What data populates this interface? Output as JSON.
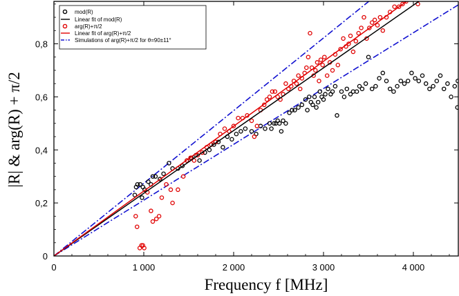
{
  "chart_data": {
    "type": "scatter",
    "xlabel": "Frequency f    [MHz]",
    "ylabel": "|R| & arg(R) + π/2",
    "xlim": [
      0,
      4500
    ],
    "ylim": [
      0,
      0.96
    ],
    "xticks": [
      0,
      1000,
      2000,
      3000,
      4000
    ],
    "xtick_labels": [
      "0",
      "1 000",
      "2 000",
      "3 000",
      "4 000"
    ],
    "yticks": [
      0,
      0.2,
      0.4,
      0.6,
      0.8
    ],
    "ytick_labels": [
      "0",
      "0,2",
      "0,4",
      "0,6",
      "0,8"
    ],
    "legend_position": "top-left",
    "colors": {
      "mod": "#000000",
      "arg": "#e00000",
      "sim": "#1010d0"
    },
    "series": [
      {
        "name": "mod(R)",
        "kind": "points",
        "color": "#000000",
        "points": [
          [
            900,
            0.23
          ],
          [
            915,
            0.26
          ],
          [
            930,
            0.27
          ],
          [
            960,
            0.27
          ],
          [
            980,
            0.22
          ],
          [
            990,
            0.26
          ],
          [
            1010,
            0.25
          ],
          [
            1050,
            0.28
          ],
          [
            1080,
            0.27
          ],
          [
            1100,
            0.3
          ],
          [
            1130,
            0.3
          ],
          [
            1180,
            0.29
          ],
          [
            1220,
            0.31
          ],
          [
            1280,
            0.35
          ],
          [
            1320,
            0.33
          ],
          [
            1380,
            0.33
          ],
          [
            1430,
            0.34
          ],
          [
            1480,
            0.36
          ],
          [
            1530,
            0.37
          ],
          [
            1580,
            0.38
          ],
          [
            1620,
            0.36
          ],
          [
            1680,
            0.39
          ],
          [
            1730,
            0.4
          ],
          [
            1780,
            0.42
          ],
          [
            1830,
            0.43
          ],
          [
            1880,
            0.41
          ],
          [
            1930,
            0.45
          ],
          [
            1980,
            0.44
          ],
          [
            2030,
            0.46
          ],
          [
            2080,
            0.47
          ],
          [
            2130,
            0.48
          ],
          [
            2200,
            0.47
          ],
          [
            2250,
            0.46
          ],
          [
            2300,
            0.49
          ],
          [
            2350,
            0.48
          ],
          [
            2400,
            0.5
          ],
          [
            2420,
            0.48
          ],
          [
            2450,
            0.5
          ],
          [
            2470,
            0.5
          ],
          [
            2490,
            0.51
          ],
          [
            2510,
            0.5
          ],
          [
            2530,
            0.47
          ],
          [
            2550,
            0.51
          ],
          [
            2580,
            0.5
          ],
          [
            2620,
            0.54
          ],
          [
            2650,
            0.55
          ],
          [
            2680,
            0.55
          ],
          [
            2720,
            0.56
          ],
          [
            2760,
            0.57
          ],
          [
            2800,
            0.59
          ],
          [
            2820,
            0.55
          ],
          [
            2840,
            0.6
          ],
          [
            2860,
            0.58
          ],
          [
            2880,
            0.57
          ],
          [
            2900,
            0.6
          ],
          [
            2920,
            0.56
          ],
          [
            2940,
            0.58
          ],
          [
            2960,
            0.62
          ],
          [
            2980,
            0.6
          ],
          [
            3000,
            0.59
          ],
          [
            3020,
            0.61
          ],
          [
            3050,
            0.63
          ],
          [
            3080,
            0.61
          ],
          [
            3100,
            0.62
          ],
          [
            3130,
            0.64
          ],
          [
            3150,
            0.53
          ],
          [
            3200,
            0.62
          ],
          [
            3230,
            0.6
          ],
          [
            3260,
            0.63
          ],
          [
            3300,
            0.61
          ],
          [
            3330,
            0.62
          ],
          [
            3370,
            0.62
          ],
          [
            3400,
            0.64
          ],
          [
            3430,
            0.63
          ],
          [
            3470,
            0.65
          ],
          [
            3500,
            0.75
          ],
          [
            3540,
            0.63
          ],
          [
            3580,
            0.64
          ],
          [
            3620,
            0.67
          ],
          [
            3660,
            0.69
          ],
          [
            3700,
            0.66
          ],
          [
            3740,
            0.63
          ],
          [
            3780,
            0.62
          ],
          [
            3820,
            0.64
          ],
          [
            3860,
            0.66
          ],
          [
            3900,
            0.65
          ],
          [
            3940,
            0.66
          ],
          [
            3980,
            0.69
          ],
          [
            4020,
            0.67
          ],
          [
            4060,
            0.66
          ],
          [
            4100,
            0.68
          ],
          [
            4140,
            0.65
          ],
          [
            4180,
            0.63
          ],
          [
            4220,
            0.64
          ],
          [
            4260,
            0.66
          ],
          [
            4300,
            0.68
          ],
          [
            4340,
            0.63
          ],
          [
            4380,
            0.65
          ],
          [
            4420,
            0.6
          ],
          [
            4460,
            0.64
          ],
          [
            4490,
            0.56
          ],
          [
            4495,
            0.66
          ]
        ]
      },
      {
        "name": "Linear fit of mod(R)",
        "kind": "line",
        "color": "#000000",
        "line": [
          [
            0,
            0
          ],
          [
            4500,
            1.064
          ]
        ]
      },
      {
        "name": "arg(R)+π/2",
        "kind": "points",
        "color": "#e00000",
        "points": [
          [
            910,
            0.15
          ],
          [
            925,
            0.11
          ],
          [
            955,
            0.03
          ],
          [
            975,
            0.04
          ],
          [
            990,
            0.04
          ],
          [
            1005,
            0.03
          ],
          [
            1040,
            0.24
          ],
          [
            1080,
            0.17
          ],
          [
            1100,
            0.13
          ],
          [
            1140,
            0.14
          ],
          [
            1170,
            0.15
          ],
          [
            1200,
            0.22
          ],
          [
            1250,
            0.27
          ],
          [
            1300,
            0.25
          ],
          [
            1320,
            0.2
          ],
          [
            1380,
            0.25
          ],
          [
            1440,
            0.3
          ],
          [
            1480,
            0.36
          ],
          [
            1520,
            0.37
          ],
          [
            1560,
            0.36
          ],
          [
            1600,
            0.38
          ],
          [
            1650,
            0.39
          ],
          [
            1700,
            0.41
          ],
          [
            1750,
            0.42
          ],
          [
            1800,
            0.43
          ],
          [
            1850,
            0.46
          ],
          [
            1900,
            0.48
          ],
          [
            1950,
            0.47
          ],
          [
            2000,
            0.49
          ],
          [
            2050,
            0.52
          ],
          [
            2100,
            0.52
          ],
          [
            2150,
            0.53
          ],
          [
            2200,
            0.51
          ],
          [
            2230,
            0.45
          ],
          [
            2260,
            0.49
          ],
          [
            2300,
            0.55
          ],
          [
            2340,
            0.57
          ],
          [
            2370,
            0.59
          ],
          [
            2400,
            0.6
          ],
          [
            2430,
            0.62
          ],
          [
            2460,
            0.62
          ],
          [
            2490,
            0.6
          ],
          [
            2520,
            0.59
          ],
          [
            2550,
            0.61
          ],
          [
            2580,
            0.65
          ],
          [
            2610,
            0.63
          ],
          [
            2640,
            0.64
          ],
          [
            2670,
            0.66
          ],
          [
            2700,
            0.65
          ],
          [
            2720,
            0.68
          ],
          [
            2740,
            0.63
          ],
          [
            2760,
            0.67
          ],
          [
            2790,
            0.69
          ],
          [
            2810,
            0.71
          ],
          [
            2830,
            0.75
          ],
          [
            2850,
            0.84
          ],
          [
            2870,
            0.71
          ],
          [
            2890,
            0.68
          ],
          [
            2910,
            0.7
          ],
          [
            2930,
            0.73
          ],
          [
            2950,
            0.66
          ],
          [
            2970,
            0.74
          ],
          [
            2990,
            0.72
          ],
          [
            3010,
            0.75
          ],
          [
            3040,
            0.68
          ],
          [
            3070,
            0.73
          ],
          [
            3100,
            0.7
          ],
          [
            3130,
            0.76
          ],
          [
            3160,
            0.72
          ],
          [
            3190,
            0.78
          ],
          [
            3220,
            0.82
          ],
          [
            3250,
            0.79
          ],
          [
            3280,
            0.8
          ],
          [
            3300,
            0.83
          ],
          [
            3330,
            0.77
          ],
          [
            3360,
            0.81
          ],
          [
            3390,
            0.84
          ],
          [
            3420,
            0.86
          ],
          [
            3450,
            0.9
          ],
          [
            3480,
            0.82
          ],
          [
            3510,
            0.86
          ],
          [
            3540,
            0.88
          ],
          [
            3570,
            0.89
          ],
          [
            3600,
            0.87
          ],
          [
            3630,
            0.9
          ],
          [
            3660,
            0.85
          ],
          [
            3700,
            0.9
          ],
          [
            3740,
            0.92
          ],
          [
            3790,
            0.94
          ],
          [
            3840,
            0.94
          ],
          [
            3880,
            0.95
          ],
          [
            3920,
            0.96
          ],
          [
            4050,
            0.95
          ]
        ]
      },
      {
        "name": "Linear fit of arg(R)+π/2",
        "kind": "line",
        "color": "#e00000",
        "line": [
          [
            0,
            0
          ],
          [
            4500,
            1.101
          ]
        ]
      },
      {
        "name": "Simulations of arg(R)+π/2 for θ=90±11°",
        "kind": "band",
        "color": "#1010d0",
        "lines": [
          [
            [
              0,
              0
            ],
            [
              4500,
              0.947
            ]
          ],
          [
            [
              0,
              0
            ],
            [
              4500,
              1.233
            ]
          ]
        ]
      }
    ]
  }
}
